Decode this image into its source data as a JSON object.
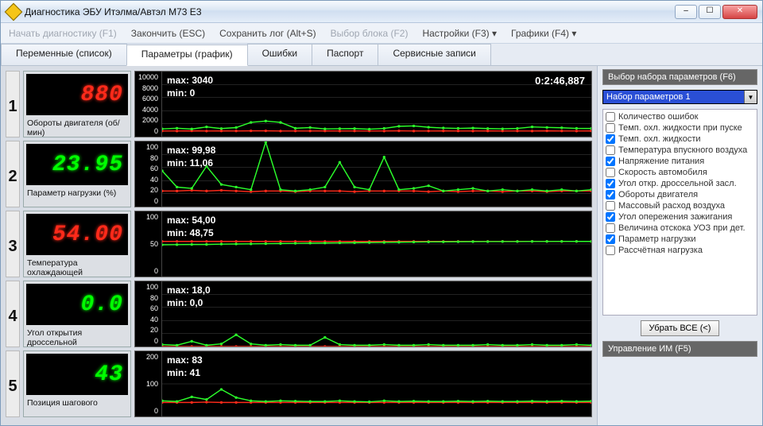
{
  "window": {
    "title": "Диагностика ЭБУ Итэлма/Автэл М73 E3"
  },
  "menu": [
    {
      "label": "Начать диагностику (F1)",
      "enabled": false
    },
    {
      "label": "Закончить (ESC)",
      "enabled": true
    },
    {
      "label": "Сохранить лог (Alt+S)",
      "enabled": true
    },
    {
      "label": "Выбор блока (F2)",
      "enabled": false
    },
    {
      "label": "Настройки (F3) ▾",
      "enabled": true
    },
    {
      "label": "Графики (F4) ▾",
      "enabled": true
    }
  ],
  "tabs": [
    {
      "label": "Переменные (список)",
      "active": false
    },
    {
      "label": "Параметры (график)",
      "active": true
    },
    {
      "label": "Ошибки",
      "active": false
    },
    {
      "label": "Паспорт",
      "active": false
    },
    {
      "label": "Сервисные записи",
      "active": false
    }
  ],
  "timestamp": "0:2:46,887",
  "params": [
    {
      "n": "1",
      "value": "880",
      "color": "red",
      "label": "Обороты двигателя (об/мин)",
      "yticks": [
        "10000",
        "8000",
        "6000",
        "4000",
        "2000",
        "0"
      ],
      "yrange": [
        0,
        10000
      ],
      "max": "max: 3040",
      "min": "min: 0",
      "show_ts": true,
      "series": [
        {
          "c": "#ff2a1a",
          "y": [
            880,
            870,
            900,
            870,
            890,
            880,
            900,
            900,
            870,
            880,
            880,
            890,
            870,
            880,
            880,
            870,
            900,
            870,
            880,
            890,
            880,
            870,
            890,
            880,
            880,
            870,
            900,
            880,
            870,
            890
          ]
        },
        {
          "c": "#2bff2b",
          "y": [
            1200,
            1300,
            1180,
            1500,
            1250,
            1400,
            2200,
            2400,
            2200,
            1300,
            1400,
            1200,
            1230,
            1250,
            1150,
            1280,
            1600,
            1650,
            1450,
            1340,
            1280,
            1320,
            1250,
            1210,
            1270,
            1500,
            1420,
            1370,
            1280,
            1260
          ]
        }
      ]
    },
    {
      "n": "2",
      "value": "23.95",
      "color": "green",
      "label": "Параметр нагрузки (%)",
      "yticks": [
        "100",
        "80",
        "60",
        "40",
        "20",
        "0"
      ],
      "yrange": [
        0,
        100
      ],
      "max": "max: 99,98",
      "min": "min: 11,06",
      "series": [
        {
          "c": "#ff2a1a",
          "y": [
            24,
            24,
            25,
            24,
            25,
            24,
            23,
            24,
            24,
            23,
            24,
            24,
            24,
            23,
            24,
            24,
            24,
            24,
            23,
            24,
            23,
            24,
            24,
            23,
            24,
            24,
            23,
            24,
            24,
            24
          ]
        },
        {
          "c": "#2bff2b",
          "y": [
            55,
            30,
            28,
            62,
            34,
            30,
            26,
            99,
            26,
            24,
            26,
            30,
            68,
            30,
            26,
            76,
            26,
            28,
            32,
            24,
            26,
            28,
            24,
            26,
            24,
            26,
            24,
            26,
            24,
            26
          ]
        }
      ]
    },
    {
      "n": "3",
      "value": "54.00",
      "color": "red",
      "label": "Температура охлаждающей",
      "yticks": [
        "100",
        "50",
        "0"
      ],
      "yrange": [
        0,
        100
      ],
      "max": "max: 54,00",
      "min": "min: 48,75",
      "series": [
        {
          "c": "#ff2a1a",
          "y": [
            54,
            54,
            54,
            54,
            54,
            54,
            54,
            54,
            54,
            54,
            54,
            54,
            54,
            54,
            54,
            54,
            54,
            54,
            54,
            54,
            54,
            54,
            54,
            54,
            54,
            54,
            54,
            54,
            54,
            54
          ]
        },
        {
          "c": "#2bff2b",
          "y": [
            48.8,
            49,
            49.2,
            49.3,
            49.8,
            50,
            50.2,
            50.5,
            50.7,
            51,
            51.3,
            51.5,
            51.8,
            52,
            52.3,
            52.5,
            52.8,
            53,
            53.2,
            53.4,
            53.5,
            53.6,
            53.7,
            53.8,
            53.8,
            53.9,
            53.9,
            54,
            54,
            54
          ]
        }
      ]
    },
    {
      "n": "4",
      "value": "0.0",
      "color": "green",
      "label": "Угол открытия дроссельной",
      "yticks": [
        "100",
        "80",
        "60",
        "40",
        "20",
        "0"
      ],
      "yrange": [
        0,
        100
      ],
      "max": "max: 18,0",
      "min": "min: 0,0",
      "series": [
        {
          "c": "#ff2a1a",
          "y": [
            0,
            0,
            0,
            0,
            0,
            0,
            0,
            0,
            0,
            0,
            0,
            0,
            0,
            0,
            0,
            0,
            0,
            0,
            0,
            0,
            0,
            0,
            0,
            0,
            0,
            0,
            0,
            0,
            0,
            0
          ]
        },
        {
          "c": "#2bff2b",
          "y": [
            3,
            2,
            8,
            2,
            4,
            18,
            4,
            2,
            3,
            2,
            2,
            14,
            3,
            2,
            2,
            3,
            2,
            2,
            3,
            2,
            2,
            2,
            3,
            2,
            2,
            3,
            2,
            2,
            3,
            2
          ]
        }
      ]
    },
    {
      "n": "5",
      "value": "43",
      "color": "green",
      "label": "Позиция шагового",
      "yticks": [
        "200",
        "100",
        "0"
      ],
      "yrange": [
        0,
        200
      ],
      "max": "max: 83",
      "min": "min: 41",
      "series": [
        {
          "c": "#ff2a1a",
          "y": [
            43,
            43,
            43,
            44,
            43,
            43,
            43,
            43,
            43,
            43,
            43,
            43,
            43,
            43,
            43,
            43,
            43,
            43,
            43,
            43,
            43,
            43,
            43,
            43,
            43,
            43,
            43,
            43,
            43,
            43
          ]
        },
        {
          "c": "#2bff2b",
          "y": [
            48,
            46,
            60,
            52,
            83,
            58,
            48,
            46,
            48,
            47,
            46,
            46,
            48,
            46,
            45,
            48,
            46,
            47,
            46,
            46,
            47,
            46,
            47,
            46,
            46,
            47,
            46,
            47,
            46,
            47
          ]
        }
      ]
    }
  ],
  "rpanel": {
    "header": "Выбор набора параметров (F6)",
    "preset": "Набор параметров 1",
    "checks": [
      {
        "label": "Количество ошибок",
        "checked": false
      },
      {
        "label": "Темп. охл. жидкости при пуске",
        "checked": false
      },
      {
        "label": "Темп. охл. жидкости",
        "checked": true
      },
      {
        "label": "Температура впускного воздуха",
        "checked": false
      },
      {
        "label": "Напряжение питания",
        "checked": true
      },
      {
        "label": "Скорость автомобиля",
        "checked": false
      },
      {
        "label": "Угол откр. дроссельной засл.",
        "checked": true
      },
      {
        "label": "Обороты двигателя",
        "checked": true
      },
      {
        "label": "Массовый расход воздуха",
        "checked": false
      },
      {
        "label": "Угол опережения зажигания",
        "checked": true
      },
      {
        "label": "Величина отскока УОЗ при дет.",
        "checked": false
      },
      {
        "label": "Параметр нагрузки",
        "checked": true
      },
      {
        "label": "Рассчётная нагрузка",
        "checked": false
      }
    ],
    "remove_btn": "Убрать ВСЕ (<)",
    "control_header": "Управление ИМ (F5)"
  }
}
